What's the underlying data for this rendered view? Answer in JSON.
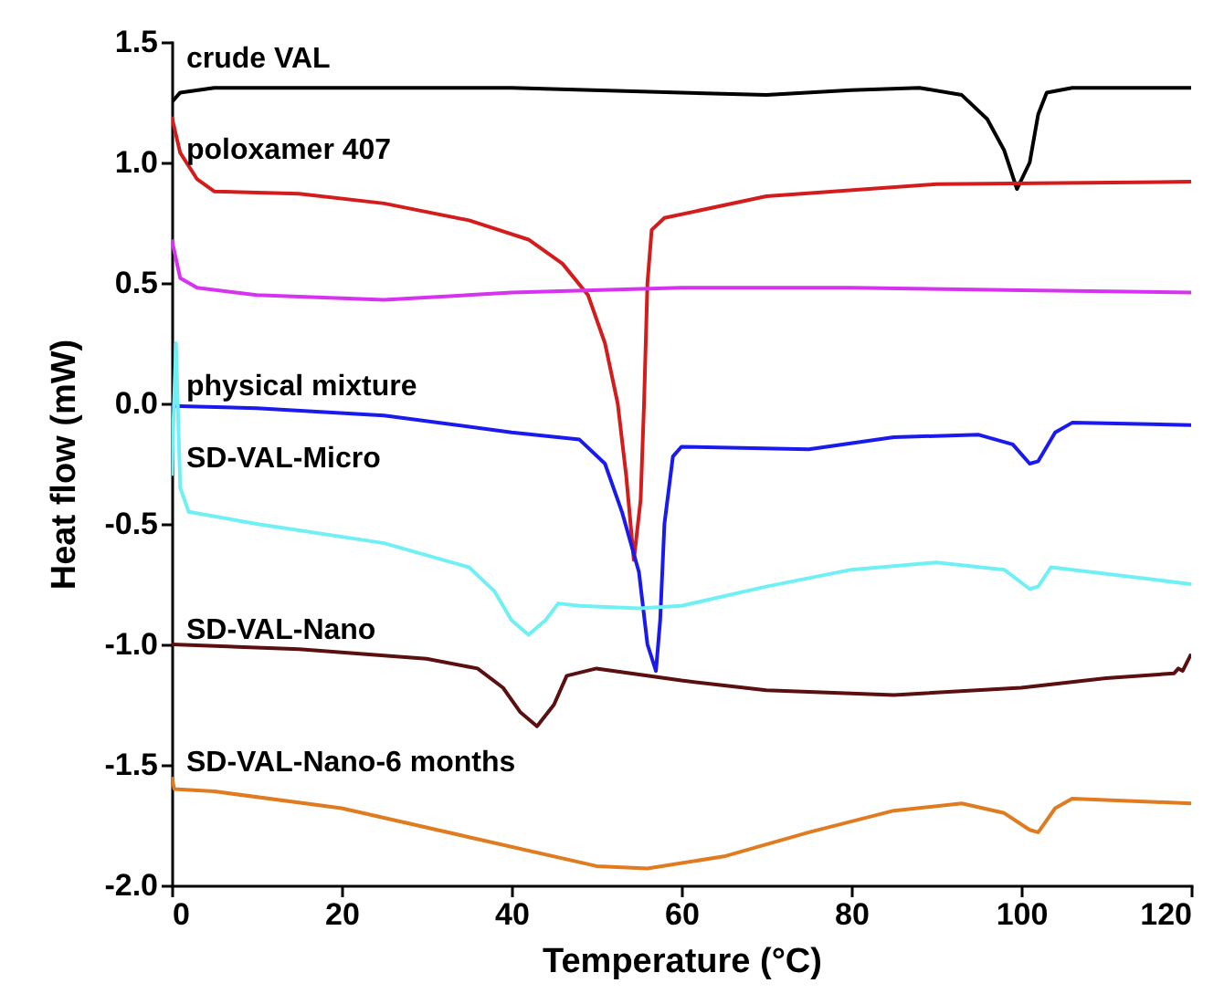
{
  "chart_data": {
    "type": "line",
    "xlabel": "Temperature (°C)",
    "ylabel": "Heat flow (mW)",
    "xlim": [
      0,
      120
    ],
    "xticks": [
      0,
      20,
      40,
      60,
      80,
      100,
      120
    ],
    "ylim": [
      -2.0,
      1.5
    ],
    "yticks": [
      {
        "value": -2,
        "label": "-2.0"
      },
      -1.5,
      {
        "value": -1,
        "label": "-1.0"
      },
      -0.5,
      {
        "value": 0,
        "label": "0.0"
      },
      0.5,
      {
        "value": 1,
        "label": "1.0"
      },
      1.5
    ],
    "grid": false,
    "line_style": "solid",
    "marker": "none",
    "series": [
      {
        "name": "crude VAL",
        "color": "#000000",
        "x": [
          0,
          1,
          5,
          20,
          40,
          60,
          70,
          80,
          88,
          93,
          96,
          98,
          99.5,
          101,
          102,
          103,
          106,
          120
        ],
        "values": [
          1.25,
          1.29,
          1.31,
          1.31,
          1.31,
          1.29,
          1.28,
          1.3,
          1.31,
          1.28,
          1.18,
          1.05,
          0.89,
          1.0,
          1.2,
          1.29,
          1.31,
          1.31
        ]
      },
      {
        "name": "poloxamer 407",
        "color": "#d41c1c",
        "x": [
          0,
          1,
          3,
          5,
          15,
          25,
          35,
          42,
          46,
          49,
          51,
          52.5,
          53.5,
          54.4,
          55.2,
          55.6,
          56,
          56.5,
          58,
          70,
          90,
          120
        ],
        "values": [
          1.19,
          1.04,
          0.93,
          0.88,
          0.87,
          0.83,
          0.76,
          0.68,
          0.58,
          0.45,
          0.25,
          0.0,
          -0.3,
          -0.65,
          -0.4,
          0.0,
          0.5,
          0.72,
          0.77,
          0.86,
          0.91,
          0.92
        ]
      },
      {
        "color": "#d633f0",
        "x": [
          0,
          1,
          3,
          10,
          25,
          40,
          60,
          80,
          100,
          120
        ],
        "values": [
          0.68,
          0.52,
          0.48,
          0.45,
          0.43,
          0.46,
          0.48,
          0.48,
          0.47,
          0.46
        ]
      },
      {
        "name": "physical mixture",
        "color": "#1a1aef",
        "x": [
          0,
          10,
          25,
          40,
          48,
          51,
          53,
          55,
          56,
          57,
          57.5,
          58,
          59,
          60,
          75,
          85,
          95,
          99,
          101,
          102,
          104,
          106,
          120
        ],
        "values": [
          -0.01,
          -0.02,
          -0.05,
          -0.12,
          -0.15,
          -0.25,
          -0.45,
          -0.7,
          -1.0,
          -1.11,
          -0.9,
          -0.5,
          -0.22,
          -0.18,
          -0.19,
          -0.14,
          -0.13,
          -0.17,
          -0.25,
          -0.24,
          -0.12,
          -0.08,
          -0.09
        ]
      },
      {
        "name": "SD-VAL-Micro",
        "color": "#6ff0f5",
        "x": [
          0,
          0.5,
          1,
          2,
          10,
          25,
          35,
          38,
          40,
          42,
          44,
          45.5,
          48,
          55,
          60,
          70,
          80,
          90,
          98,
          101,
          102,
          103.5,
          106,
          120
        ],
        "values": [
          -0.3,
          0.25,
          -0.35,
          -0.45,
          -0.5,
          -0.58,
          -0.68,
          -0.78,
          -0.9,
          -0.96,
          -0.9,
          -0.83,
          -0.84,
          -0.85,
          -0.84,
          -0.76,
          -0.69,
          -0.66,
          -0.69,
          -0.77,
          -0.76,
          -0.68,
          -0.69,
          -0.75
        ]
      },
      {
        "name": "SD-VAL-Nano",
        "color": "#5a1010",
        "x": [
          0,
          15,
          30,
          36,
          39,
          41,
          43,
          45,
          46.5,
          50,
          60,
          70,
          85,
          100,
          110,
          118,
          118.5,
          119,
          120
        ],
        "values": [
          -1.0,
          -1.02,
          -1.06,
          -1.1,
          -1.18,
          -1.28,
          -1.34,
          -1.25,
          -1.13,
          -1.1,
          -1.15,
          -1.19,
          -1.21,
          -1.18,
          -1.14,
          -1.12,
          -1.1,
          -1.11,
          -1.04
        ]
      },
      {
        "name": "SD-VAL-Nano-6 months",
        "color": "#e07b20",
        "x": [
          0,
          0.3,
          5,
          20,
          35,
          50,
          56,
          65,
          75,
          85,
          93,
          98,
          101,
          102,
          104,
          106,
          120
        ],
        "values": [
          -1.55,
          -1.6,
          -1.61,
          -1.68,
          -1.8,
          -1.92,
          -1.93,
          -1.88,
          -1.78,
          -1.69,
          -1.66,
          -1.7,
          -1.77,
          -1.78,
          -1.68,
          -1.64,
          -1.66
        ]
      }
    ]
  }
}
